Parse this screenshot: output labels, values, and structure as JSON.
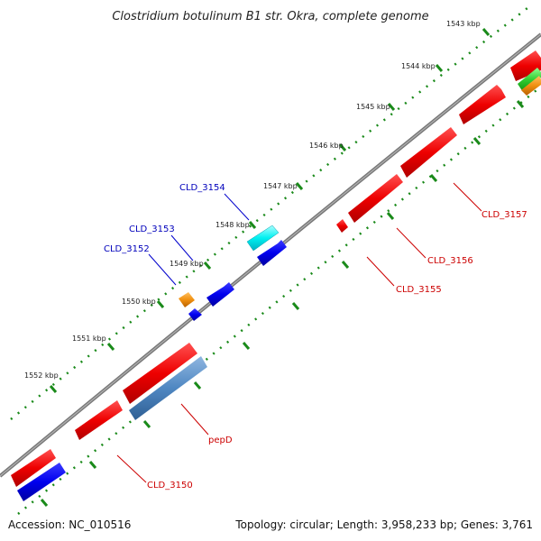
{
  "title": "Clostridium botulinum B1 str. Okra, complete genome",
  "footer": {
    "accession": "Accession: NC_010516",
    "topology": "Topology: circular; Length: 3,958,233 bp; Genes: 3,761"
  },
  "colors": {
    "backbone": "#888888",
    "tick_green": "#1a8a1a",
    "label_blue": "#0000bb",
    "label_red": "#cc0000"
  },
  "ruler_labels": [
    "1543 kbp",
    "1544 kbp",
    "1545 kbp",
    "1546 kbp",
    "1547 kbp",
    "1548 kbp",
    "1549 kbp",
    "1550 kbp",
    "1551 kbp",
    "1552 kbp"
  ],
  "gene_labels": [
    {
      "text": "CLD_3154",
      "color": "blue"
    },
    {
      "text": "CLD_3153",
      "color": "blue"
    },
    {
      "text": "CLD_3152",
      "color": "blue"
    },
    {
      "text": "CLD_3157",
      "color": "red"
    },
    {
      "text": "CLD_3156",
      "color": "red"
    },
    {
      "text": "CLD_3155",
      "color": "red"
    },
    {
      "text": "pepD",
      "color": "red"
    },
    {
      "text": "CLD_3150",
      "color": "red"
    }
  ]
}
